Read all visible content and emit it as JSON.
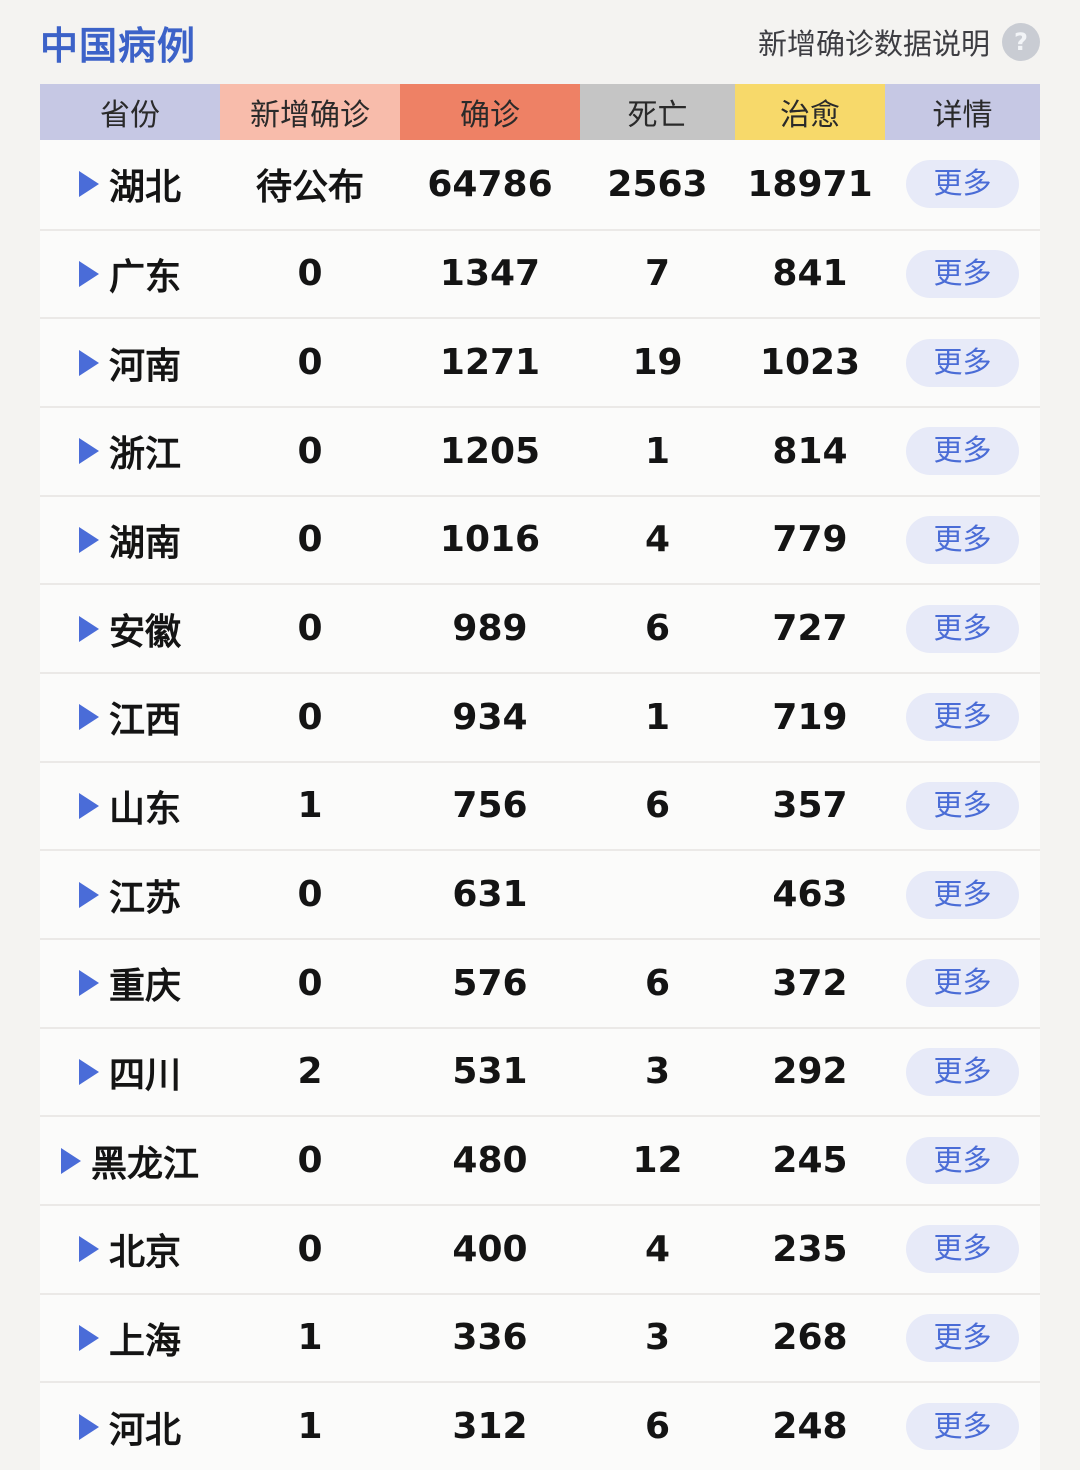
{
  "page": {
    "title": "中国病例",
    "help_label": "新增确诊数据说明",
    "help_icon_glyph": "?"
  },
  "colors": {
    "title_blue": "#3c62c8",
    "row_triangle_blue": "#4a6cd8",
    "more_button_bg": "#e7eaf8",
    "more_button_text": "#4a6cd6",
    "header_bg": [
      "#c6c8e4",
      "#f8bcab",
      "#ee8165",
      "#c5c5c5",
      "#f7d96a",
      "#c6c8e4"
    ]
  },
  "table": {
    "columns": [
      {
        "key": "province",
        "label": "省份"
      },
      {
        "key": "new_confirmed",
        "label": "新增确诊"
      },
      {
        "key": "confirmed",
        "label": "确诊"
      },
      {
        "key": "deaths",
        "label": "死亡"
      },
      {
        "key": "cured",
        "label": "治愈"
      },
      {
        "key": "detail",
        "label": "详情"
      }
    ],
    "more_label": "更多",
    "rows": [
      {
        "province": "湖北",
        "new_confirmed": "待公布",
        "confirmed": "64786",
        "deaths": "2563",
        "cured": "18971"
      },
      {
        "province": "广东",
        "new_confirmed": "0",
        "confirmed": "1347",
        "deaths": "7",
        "cured": "841"
      },
      {
        "province": "河南",
        "new_confirmed": "0",
        "confirmed": "1271",
        "deaths": "19",
        "cured": "1023"
      },
      {
        "province": "浙江",
        "new_confirmed": "0",
        "confirmed": "1205",
        "deaths": "1",
        "cured": "814"
      },
      {
        "province": "湖南",
        "new_confirmed": "0",
        "confirmed": "1016",
        "deaths": "4",
        "cured": "779"
      },
      {
        "province": "安徽",
        "new_confirmed": "0",
        "confirmed": "989",
        "deaths": "6",
        "cured": "727"
      },
      {
        "province": "江西",
        "new_confirmed": "0",
        "confirmed": "934",
        "deaths": "1",
        "cured": "719"
      },
      {
        "province": "山东",
        "new_confirmed": "1",
        "confirmed": "756",
        "deaths": "6",
        "cured": "357"
      },
      {
        "province": "江苏",
        "new_confirmed": "0",
        "confirmed": "631",
        "deaths": "",
        "cured": "463"
      },
      {
        "province": "重庆",
        "new_confirmed": "0",
        "confirmed": "576",
        "deaths": "6",
        "cured": "372"
      },
      {
        "province": "四川",
        "new_confirmed": "2",
        "confirmed": "531",
        "deaths": "3",
        "cured": "292"
      },
      {
        "province": "黑龙江",
        "new_confirmed": "0",
        "confirmed": "480",
        "deaths": "12",
        "cured": "245"
      },
      {
        "province": "北京",
        "new_confirmed": "0",
        "confirmed": "400",
        "deaths": "4",
        "cured": "235"
      },
      {
        "province": "上海",
        "new_confirmed": "1",
        "confirmed": "336",
        "deaths": "3",
        "cured": "268"
      },
      {
        "province": "河北",
        "new_confirmed": "1",
        "confirmed": "312",
        "deaths": "6",
        "cured": "248"
      }
    ]
  }
}
